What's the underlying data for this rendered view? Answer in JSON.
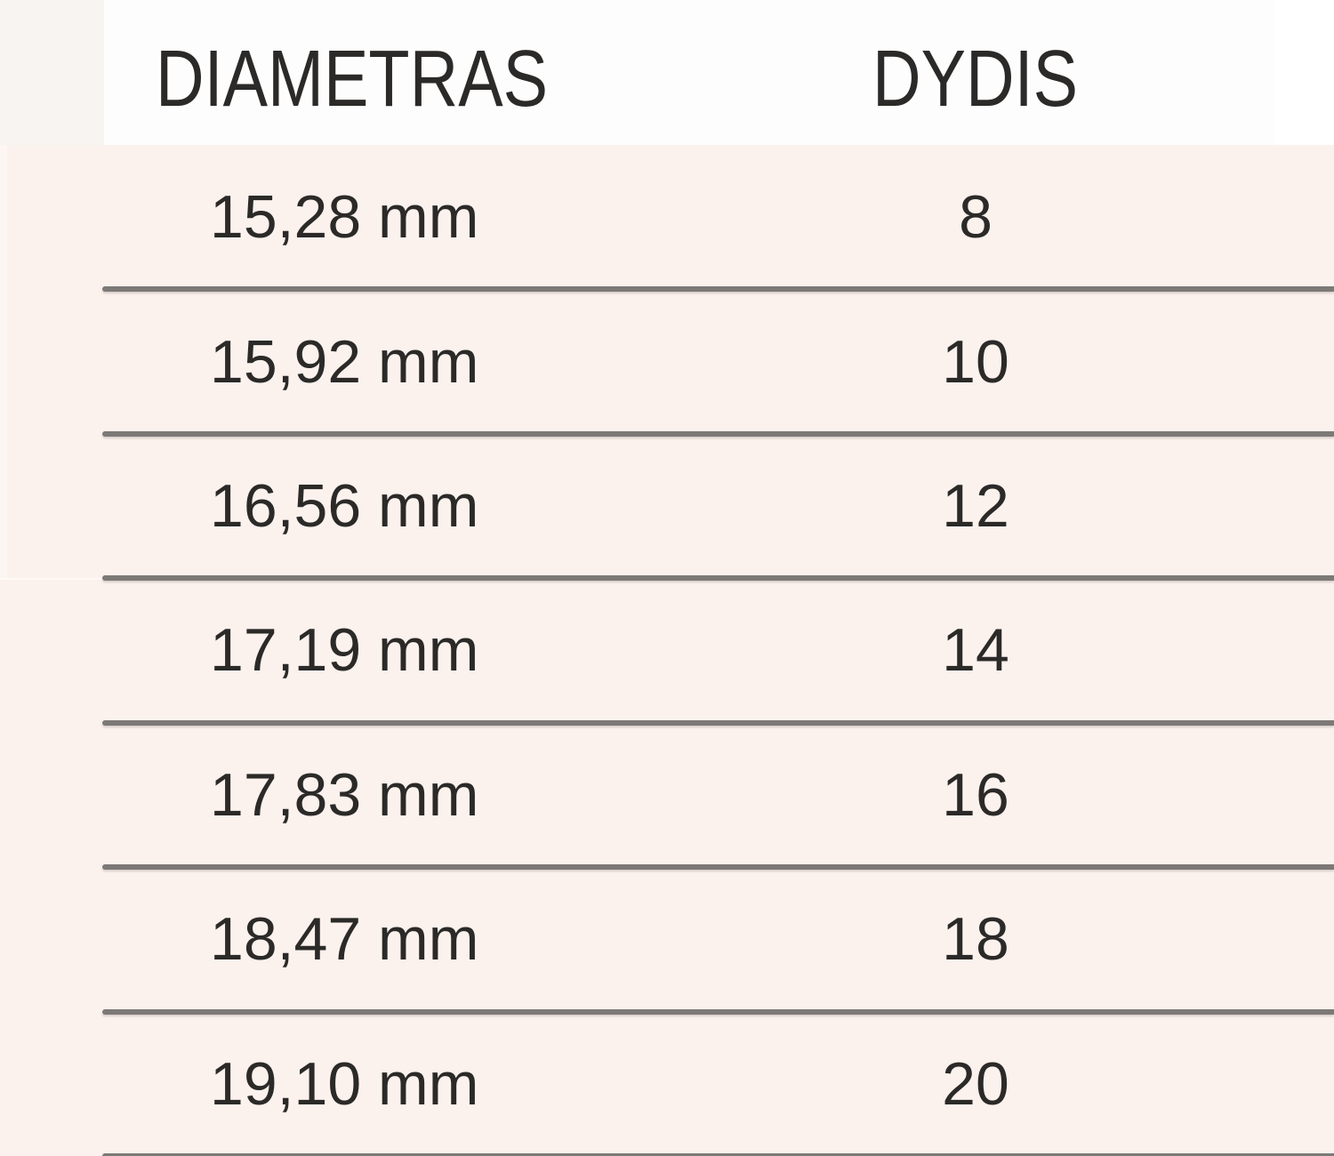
{
  "table": {
    "headers": {
      "diameter": "DIAMETRAS",
      "size": "DYDIS"
    },
    "rows": [
      {
        "diameter": "15,28 mm",
        "size": "8"
      },
      {
        "diameter": "15,92 mm",
        "size": "10"
      },
      {
        "diameter": "16,56 mm",
        "size": "12"
      },
      {
        "diameter": "17,19 mm",
        "size": "14"
      },
      {
        "diameter": "17,83 mm",
        "size": "16"
      },
      {
        "diameter": "18,47 mm",
        "size": "18"
      },
      {
        "diameter": "19,10 mm",
        "size": "20"
      }
    ]
  },
  "chart_data": {
    "type": "table",
    "columns": [
      "DIAMETRAS",
      "DYDIS"
    ],
    "rows": [
      [
        "15,28 mm",
        "8"
      ],
      [
        "15,92 mm",
        "10"
      ],
      [
        "16,56 mm",
        "12"
      ],
      [
        "17,19 mm",
        "14"
      ],
      [
        "17,83 mm",
        "16"
      ],
      [
        "18,47 mm",
        "18"
      ],
      [
        "19,10 mm",
        "20"
      ]
    ]
  },
  "colors": {
    "header_bg": "#fdfdfd",
    "page_margin_bg": "#f8f4f1",
    "body_bg": "#fbf1ed",
    "divider": "#7c7977",
    "text": "#2b2a28"
  }
}
